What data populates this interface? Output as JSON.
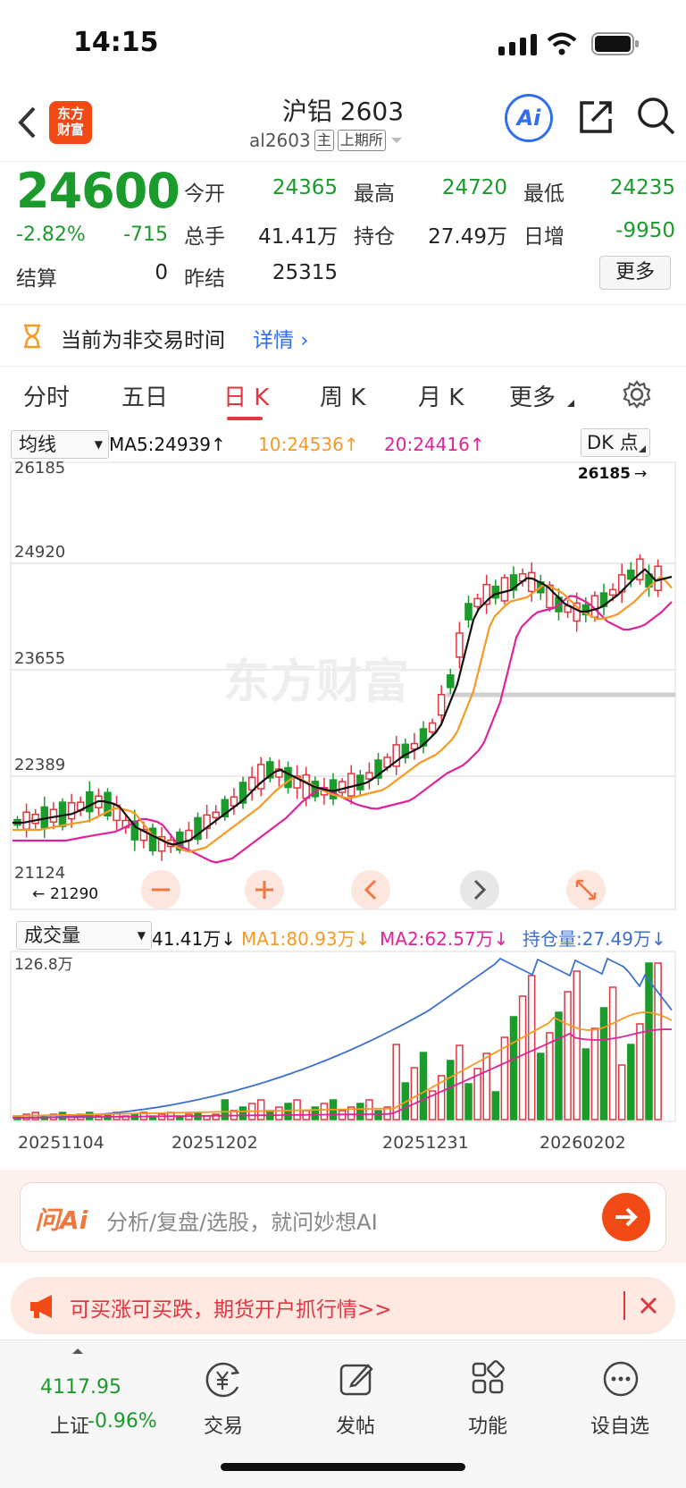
{
  "status_bar": {
    "time": "14:15"
  },
  "header": {
    "title": "沪铝 2603",
    "code": "al2603",
    "tag_main": "主",
    "tag_exchange": "上期所",
    "logo_text_line1": "东方",
    "logo_text_line2": "财富",
    "ai_label": "Ai"
  },
  "quote": {
    "price": "24600",
    "change_pct": "-2.82%",
    "change": "-715",
    "settle_label": "结算",
    "settle_value": "0",
    "open_label": "今开",
    "open_value": "24365",
    "high_label": "最高",
    "high_value": "24720",
    "low_label": "最低",
    "low_value": "24235",
    "volume_label": "总手",
    "volume_value": "41.41万",
    "oi_label": "持仓",
    "oi_value": "27.49万",
    "daily_inc_label": "日增",
    "daily_inc_value": "-9950",
    "prev_settle_label": "昨结",
    "prev_settle_value": "25315",
    "more_button": "更多"
  },
  "notice": {
    "text": "当前为非交易时间",
    "link": "详情"
  },
  "tabs": {
    "items": [
      "分时",
      "五日",
      "日 K",
      "周 K",
      "月 K",
      "更多"
    ],
    "active_index": 2
  },
  "kline": {
    "indicator_select": "均线",
    "ma5": "MA5:24939",
    "ma10": "10:24536",
    "ma20": "20:24416",
    "dk_button": "DK 点",
    "y_ticks": [
      "26185",
      "24920",
      "23655",
      "22389",
      "21124"
    ],
    "max_marker": "26185",
    "min_marker": "21290",
    "watermark": "东方财富",
    "colors": {
      "ma5": "#111111",
      "ma10": "#f59a23",
      "ma20": "#e0229b",
      "up": "#e3353f",
      "down": "#1a9b2b"
    }
  },
  "volume": {
    "indicator_select": "成交量",
    "vol_now": "41.41万",
    "ma1": "MA1:80.93万",
    "ma2": "MA2:62.57万",
    "oi": "持仓量:27.49万",
    "y_max": "126.8万",
    "x_labels": [
      "20251104",
      "20251202",
      "20251231",
      "20260202"
    ]
  },
  "ai_bar": {
    "brand": "问Ai",
    "placeholder": "分析/复盘/选股，就问妙想AI"
  },
  "ad_bar": {
    "text": "可买涨可买跌，期货开户抓行情>>"
  },
  "bottom_nav": {
    "index_value": "4117.95",
    "index_name": "上证",
    "index_change": "-0.96%",
    "items": [
      "交易",
      "发帖",
      "功能",
      "设自选"
    ]
  }
}
